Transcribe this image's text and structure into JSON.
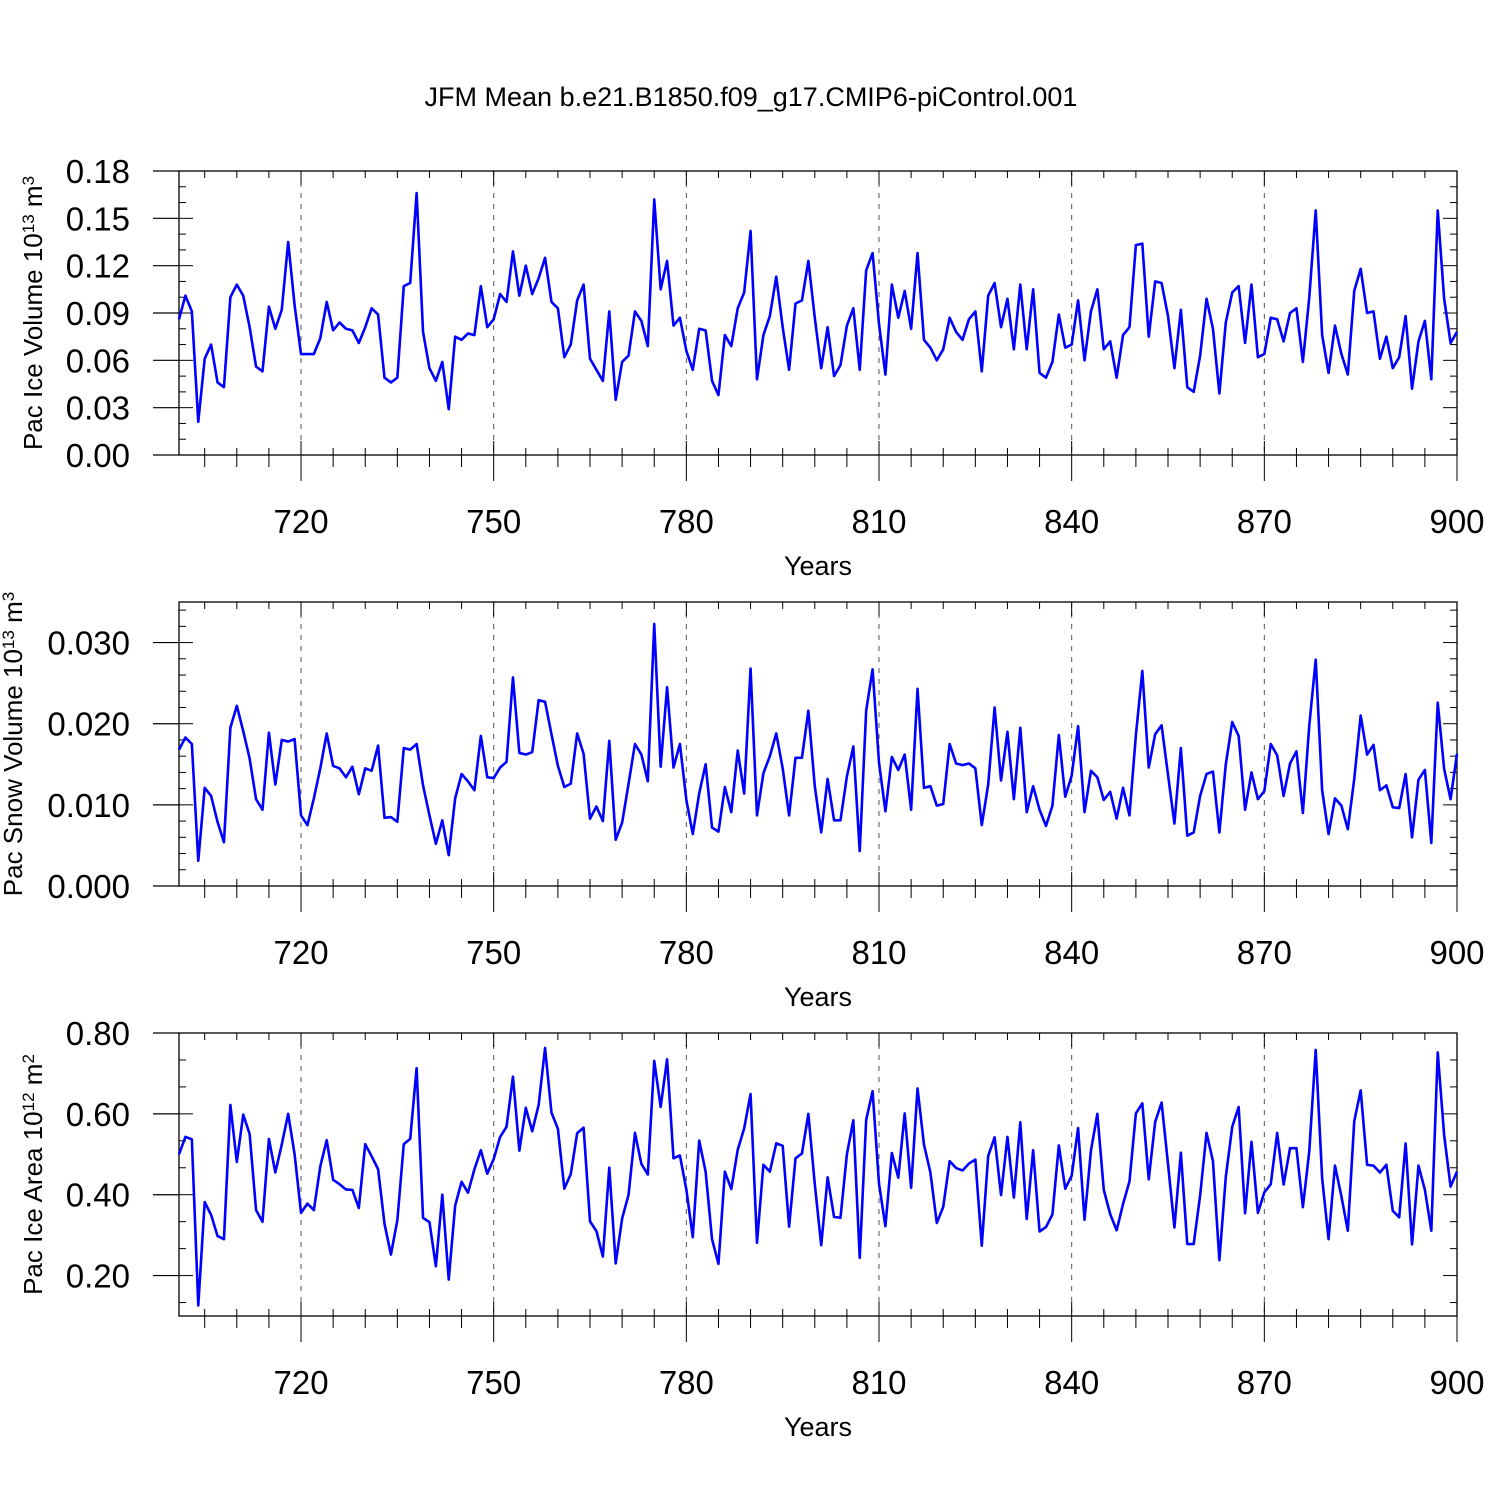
{
  "title": "JFM Mean b.e21.B1850.f09_g17.CMIP6-piControl.001",
  "colors": {
    "line": "#0000ff",
    "axis": "#000000",
    "grid": "#555555"
  },
  "chart_data": [
    {
      "type": "line",
      "ylabel": "Pac Ice Volume 10¹³ m³",
      "ylabel_main": "Pac Ice Volume 10",
      "ylabel_exp": "13",
      "ylabel_unit": " m",
      "ylabel_unit_exp": "3",
      "xlabel": "Years",
      "xlim": [
        701,
        900
      ],
      "ylim": [
        0,
        0.18
      ],
      "xticks": [
        720,
        750,
        780,
        810,
        840,
        870,
        900
      ],
      "xtick_labels": [
        "720",
        "750",
        "780",
        "810",
        "840",
        "870",
        "900"
      ],
      "yticks": [
        0.0,
        0.03,
        0.06,
        0.09,
        0.12,
        0.15,
        0.18
      ],
      "ytick_labels": [
        "0.00",
        "0.03",
        "0.06",
        "0.09",
        "0.12",
        "0.15",
        "0.18"
      ],
      "grid": "vertical dashed at major x ticks",
      "series": [
        {
          "x_start": 701,
          "values": [
            0.086,
            0.101,
            0.091,
            0.021,
            0.061,
            0.07,
            0.046,
            0.043,
            0.1,
            0.108,
            0.101,
            0.081,
            0.056,
            0.053,
            0.094,
            0.08,
            0.092,
            0.135,
            0.095,
            0.064,
            0.064,
            0.064,
            0.074,
            0.097,
            0.079,
            0.084,
            0.08,
            0.079,
            0.071,
            0.081,
            0.093,
            0.089,
            0.049,
            0.046,
            0.049,
            0.107,
            0.109,
            0.166,
            0.078,
            0.055,
            0.047,
            0.059,
            0.029,
            0.075,
            0.073,
            0.077,
            0.076,
            0.107,
            0.081,
            0.086,
            0.102,
            0.097,
            0.129,
            0.101,
            0.12,
            0.102,
            0.112,
            0.125,
            0.097,
            0.093,
            0.062,
            0.07,
            0.098,
            0.108,
            0.061,
            0.054,
            0.047,
            0.091,
            0.035,
            0.059,
            0.063,
            0.091,
            0.085,
            0.069,
            0.162,
            0.105,
            0.123,
            0.082,
            0.087,
            0.066,
            0.054,
            0.08,
            0.079,
            0.047,
            0.038,
            0.076,
            0.069,
            0.093,
            0.103,
            0.142,
            0.048,
            0.076,
            0.088,
            0.113,
            0.081,
            0.054,
            0.096,
            0.098,
            0.123,
            0.087,
            0.055,
            0.081,
            0.05,
            0.057,
            0.082,
            0.093,
            0.054,
            0.117,
            0.128,
            0.083,
            0.051,
            0.108,
            0.087,
            0.104,
            0.08,
            0.128,
            0.073,
            0.068,
            0.06,
            0.067,
            0.087,
            0.078,
            0.073,
            0.086,
            0.091,
            0.053,
            0.101,
            0.109,
            0.081,
            0.099,
            0.067,
            0.108,
            0.067,
            0.105,
            0.052,
            0.049,
            0.059,
            0.089,
            0.068,
            0.07,
            0.098,
            0.06,
            0.091,
            0.105,
            0.067,
            0.072,
            0.049,
            0.076,
            0.081,
            0.133,
            0.134,
            0.075,
            0.11,
            0.109,
            0.088,
            0.055,
            0.092,
            0.043,
            0.04,
            0.063,
            0.099,
            0.08,
            0.039,
            0.084,
            0.103,
            0.107,
            0.071,
            0.108,
            0.062,
            0.064,
            0.087,
            0.086,
            0.072,
            0.09,
            0.093,
            0.059,
            0.1,
            0.155,
            0.076,
            0.052,
            0.082,
            0.064,
            0.051,
            0.104,
            0.118,
            0.09,
            0.091,
            0.061,
            0.075,
            0.055,
            0.062,
            0.088,
            0.042,
            0.072,
            0.085,
            0.048,
            0.155,
            0.099,
            0.071,
            0.078
          ]
        }
      ]
    },
    {
      "type": "line",
      "ylabel": "Pac Snow Volume 10¹³ m³",
      "ylabel_main": "Pac Snow Volume 10",
      "ylabel_exp": "13",
      "ylabel_unit": " m",
      "ylabel_unit_exp": "3",
      "xlabel": "Years",
      "xlim": [
        701,
        900
      ],
      "ylim": [
        0,
        0.035
      ],
      "xticks": [
        720,
        750,
        780,
        810,
        840,
        870,
        900
      ],
      "xtick_labels": [
        "720",
        "750",
        "780",
        "810",
        "840",
        "870",
        "900"
      ],
      "yticks": [
        0.0,
        0.01,
        0.02,
        0.03
      ],
      "ytick_labels": [
        "0.000",
        "0.010",
        "0.020",
        "0.030"
      ],
      "grid": "vertical dashed at major x ticks",
      "series": [
        {
          "x_start": 701,
          "values": [
            0.0168,
            0.0183,
            0.0175,
            0.0031,
            0.0121,
            0.0111,
            0.0079,
            0.0054,
            0.0195,
            0.0222,
            0.0191,
            0.0157,
            0.0107,
            0.0094,
            0.0189,
            0.0125,
            0.018,
            0.0178,
            0.0181,
            0.0087,
            0.0075,
            0.0108,
            0.0145,
            0.0188,
            0.0148,
            0.0145,
            0.0134,
            0.0147,
            0.0113,
            0.0145,
            0.0142,
            0.0173,
            0.0084,
            0.0085,
            0.0079,
            0.017,
            0.0168,
            0.0175,
            0.0124,
            0.0087,
            0.0052,
            0.0081,
            0.0038,
            0.0108,
            0.0138,
            0.0129,
            0.0118,
            0.0185,
            0.0134,
            0.0133,
            0.0146,
            0.0153,
            0.0257,
            0.0164,
            0.0162,
            0.0165,
            0.0229,
            0.0227,
            0.0187,
            0.0148,
            0.0122,
            0.0126,
            0.0188,
            0.0163,
            0.0083,
            0.0098,
            0.008,
            0.0179,
            0.0057,
            0.0078,
            0.0126,
            0.0175,
            0.0162,
            0.0129,
            0.0323,
            0.0147,
            0.0245,
            0.0146,
            0.0175,
            0.0106,
            0.0064,
            0.0114,
            0.015,
            0.0072,
            0.0067,
            0.0122,
            0.0091,
            0.0167,
            0.0114,
            0.0268,
            0.0087,
            0.0139,
            0.016,
            0.0188,
            0.0145,
            0.0087,
            0.0158,
            0.0158,
            0.0216,
            0.0123,
            0.0066,
            0.0132,
            0.0081,
            0.0081,
            0.0135,
            0.0172,
            0.0043,
            0.0216,
            0.0267,
            0.0152,
            0.0092,
            0.0159,
            0.0143,
            0.0162,
            0.0094,
            0.0243,
            0.0121,
            0.0123,
            0.0099,
            0.0101,
            0.0175,
            0.0151,
            0.0149,
            0.0151,
            0.0145,
            0.0075,
            0.0125,
            0.022,
            0.013,
            0.019,
            0.0107,
            0.0195,
            0.0091,
            0.0123,
            0.0094,
            0.0074,
            0.0099,
            0.0186,
            0.011,
            0.0136,
            0.0197,
            0.0091,
            0.0142,
            0.0134,
            0.0106,
            0.0116,
            0.0083,
            0.0121,
            0.0087,
            0.0186,
            0.0265,
            0.0146,
            0.0187,
            0.0198,
            0.0137,
            0.0077,
            0.017,
            0.0062,
            0.0066,
            0.0111,
            0.0138,
            0.0141,
            0.0066,
            0.015,
            0.0202,
            0.0185,
            0.0094,
            0.014,
            0.0107,
            0.0117,
            0.0175,
            0.0161,
            0.0111,
            0.0151,
            0.0166,
            0.009,
            0.0198,
            0.0279,
            0.0118,
            0.0064,
            0.0108,
            0.0099,
            0.007,
            0.0132,
            0.021,
            0.0162,
            0.0174,
            0.0118,
            0.0124,
            0.0097,
            0.0096,
            0.0138,
            0.006,
            0.0131,
            0.0143,
            0.0053,
            0.0226,
            0.0144,
            0.0107,
            0.0163
          ]
        }
      ]
    },
    {
      "type": "line",
      "ylabel": "Pac Ice Area 10¹² m²",
      "ylabel_main": "Pac Ice Area 10",
      "ylabel_exp": "12",
      "ylabel_unit": " m",
      "ylabel_unit_exp": "2",
      "xlabel": "Years",
      "xlim": [
        701,
        900
      ],
      "ylim": [
        0.1,
        0.8
      ],
      "xticks": [
        720,
        750,
        780,
        810,
        840,
        870,
        900
      ],
      "xtick_labels": [
        "720",
        "750",
        "780",
        "810",
        "840",
        "870",
        "900"
      ],
      "yticks": [
        0.2,
        0.4,
        0.6,
        0.8
      ],
      "ytick_labels": [
        "0.20",
        "0.40",
        "0.60",
        "0.80"
      ],
      "grid": "vertical dashed at major x ticks",
      "series": [
        {
          "x_start": 701,
          "values": [
            0.5,
            0.543,
            0.537,
            0.126,
            0.382,
            0.35,
            0.298,
            0.29,
            0.622,
            0.481,
            0.598,
            0.55,
            0.362,
            0.333,
            0.538,
            0.455,
            0.524,
            0.6,
            0.5,
            0.355,
            0.378,
            0.362,
            0.47,
            0.535,
            0.437,
            0.426,
            0.413,
            0.412,
            0.367,
            0.525,
            0.495,
            0.463,
            0.328,
            0.252,
            0.337,
            0.525,
            0.538,
            0.713,
            0.343,
            0.332,
            0.223,
            0.4,
            0.19,
            0.373,
            0.432,
            0.405,
            0.463,
            0.51,
            0.452,
            0.488,
            0.543,
            0.568,
            0.692,
            0.509,
            0.615,
            0.557,
            0.622,
            0.763,
            0.603,
            0.563,
            0.415,
            0.451,
            0.552,
            0.566,
            0.334,
            0.31,
            0.247,
            0.467,
            0.23,
            0.341,
            0.4,
            0.553,
            0.476,
            0.45,
            0.731,
            0.617,
            0.735,
            0.49,
            0.497,
            0.413,
            0.295,
            0.534,
            0.457,
            0.29,
            0.229,
            0.457,
            0.414,
            0.511,
            0.564,
            0.649,
            0.281,
            0.474,
            0.457,
            0.527,
            0.521,
            0.321,
            0.49,
            0.502,
            0.6,
            0.426,
            0.275,
            0.443,
            0.345,
            0.343,
            0.5,
            0.584,
            0.244,
            0.585,
            0.656,
            0.427,
            0.322,
            0.503,
            0.442,
            0.601,
            0.417,
            0.663,
            0.524,
            0.455,
            0.33,
            0.37,
            0.483,
            0.466,
            0.46,
            0.477,
            0.487,
            0.274,
            0.496,
            0.542,
            0.399,
            0.543,
            0.393,
            0.579,
            0.34,
            0.51,
            0.309,
            0.32,
            0.351,
            0.522,
            0.415,
            0.447,
            0.565,
            0.338,
            0.509,
            0.6,
            0.412,
            0.352,
            0.312,
            0.377,
            0.433,
            0.601,
            0.626,
            0.438,
            0.58,
            0.628,
            0.476,
            0.319,
            0.504,
            0.278,
            0.278,
            0.398,
            0.553,
            0.483,
            0.238,
            0.444,
            0.568,
            0.617,
            0.354,
            0.531,
            0.355,
            0.406,
            0.426,
            0.553,
            0.425,
            0.515,
            0.515,
            0.369,
            0.508,
            0.758,
            0.441,
            0.29,
            0.472,
            0.396,
            0.311,
            0.582,
            0.658,
            0.474,
            0.472,
            0.455,
            0.474,
            0.36,
            0.344,
            0.527,
            0.277,
            0.472,
            0.412,
            0.311,
            0.752,
            0.547,
            0.42,
            0.457
          ]
        }
      ]
    }
  ]
}
